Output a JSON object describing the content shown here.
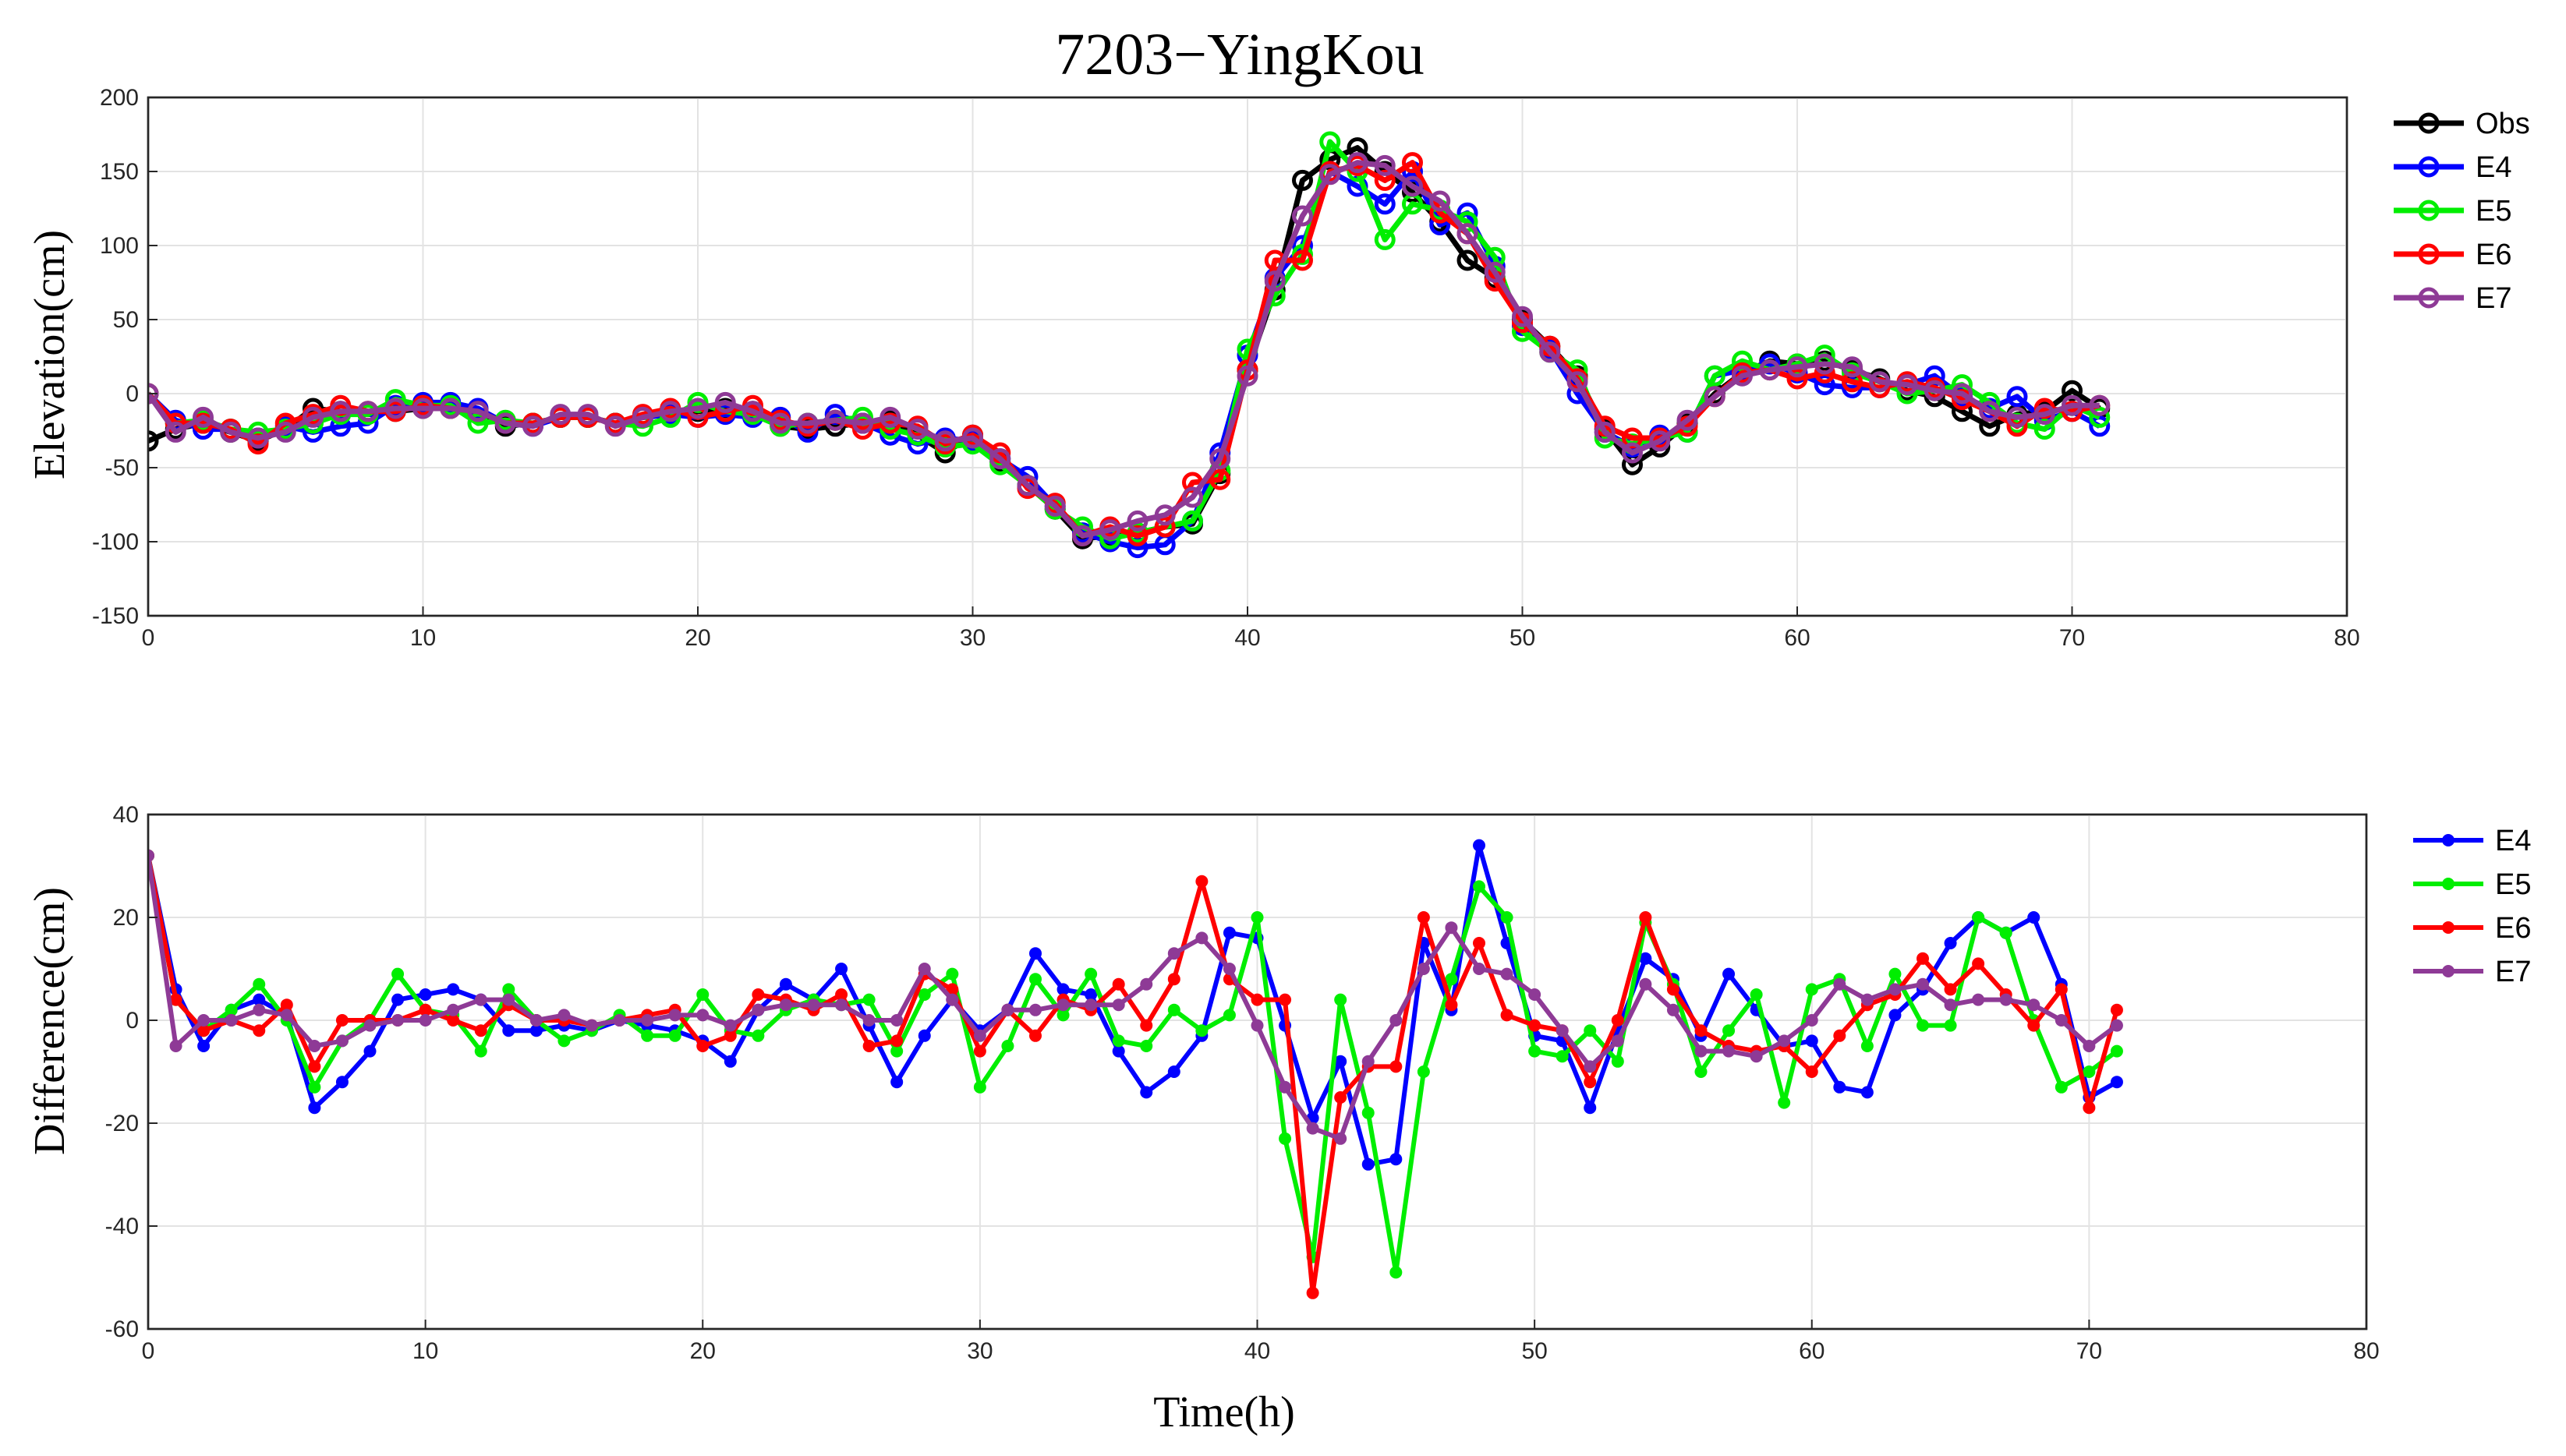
{
  "figure": {
    "title": "7203−YingKou",
    "xlabel": "Time(h)"
  },
  "colors": {
    "Obs": "#000000",
    "E4": "#0000ff",
    "E5": "#00ee00",
    "E6": "#ff0000",
    "E7": "#8e3a96"
  },
  "chart_data": [
    {
      "type": "line",
      "ylabel": "Elevation(cm)",
      "xlim": [
        0,
        80
      ],
      "ylim": [
        -150,
        200
      ],
      "xticks": [
        0,
        10,
        20,
        30,
        40,
        50,
        60,
        70,
        80
      ],
      "yticks": [
        -150,
        -100,
        -50,
        0,
        50,
        100,
        150,
        200
      ],
      "grid": true,
      "legend": "outside-right",
      "markers": "circle",
      "x": [
        0,
        1,
        2,
        3,
        4,
        5,
        6,
        7,
        8,
        9,
        10,
        11,
        12,
        13,
        14,
        15,
        16,
        17,
        18,
        19,
        20,
        21,
        22,
        23,
        24,
        25,
        26,
        27,
        28,
        29,
        30,
        31,
        32,
        33,
        34,
        35,
        36,
        37,
        38,
        39,
        40,
        41,
        42,
        43,
        44,
        45,
        46,
        47,
        48,
        49,
        50,
        51,
        52,
        53,
        54,
        55,
        56,
        57,
        58,
        59,
        60,
        61,
        62,
        63,
        64,
        65,
        66,
        67,
        68,
        69,
        70,
        71
      ],
      "series": [
        {
          "name": "Obs",
          "values": [
            -32,
            -24,
            -20,
            -26,
            -32,
            -24,
            -10,
            -12,
            -14,
            -12,
            -10,
            -10,
            -12,
            -22,
            -20,
            -16,
            -16,
            -20,
            -16,
            -14,
            -12,
            -10,
            -12,
            -22,
            -24,
            -22,
            -20,
            -18,
            -28,
            -40,
            -28,
            -46,
            -62,
            -78,
            -98,
            -96,
            -94,
            -90,
            -88,
            -54,
            16,
            70,
            144,
            158,
            166,
            150,
            136,
            116,
            90,
            78,
            50,
            32,
            12,
            -24,
            -48,
            -36,
            -20,
            0,
            14,
            22,
            20,
            22,
            16,
            10,
            2,
            -2,
            -12,
            -22,
            -14,
            -12,
            2,
            -10
          ]
        },
        {
          "name": "E4",
          "values": [
            0,
            -18,
            -24,
            -24,
            -30,
            -22,
            -26,
            -22,
            -20,
            -8,
            -6,
            -6,
            -10,
            -20,
            -22,
            -16,
            -16,
            -20,
            -16,
            -14,
            -16,
            -14,
            -16,
            -16,
            -26,
            -14,
            -20,
            -28,
            -34,
            -30,
            -32,
            -44,
            -56,
            -76,
            -94,
            -100,
            -104,
            -102,
            -86,
            -40,
            26,
            78,
            100,
            150,
            140,
            128,
            150,
            114,
            122,
            86,
            46,
            30,
            0,
            -26,
            -36,
            -28,
            -26,
            12,
            16,
            20,
            14,
            6,
            4,
            4,
            6,
            12,
            -2,
            -10,
            -2,
            -18,
            -12,
            -22
          ]
        },
        {
          "name": "E5",
          "values": [
            0,
            -20,
            -18,
            -24,
            -26,
            -24,
            -20,
            -14,
            -14,
            -4,
            -8,
            -8,
            -20,
            -18,
            -20,
            -16,
            -16,
            -20,
            -22,
            -16,
            -6,
            -12,
            -14,
            -22,
            -20,
            -18,
            -16,
            -24,
            -28,
            -36,
            -34,
            -48,
            -62,
            -78,
            -90,
            -98,
            -94,
            -90,
            -86,
            -52,
            30,
            66,
            94,
            170,
            150,
            104,
            128,
            124,
            116,
            92,
            42,
            28,
            16,
            -30,
            -34,
            -30,
            -26,
            12,
            22,
            16,
            20,
            26,
            14,
            8,
            0,
            2,
            6,
            -6,
            -20,
            -24,
            -8,
            -16
          ]
        },
        {
          "name": "E6",
          "values": [
            0,
            -20,
            -20,
            -24,
            -34,
            -20,
            -14,
            -8,
            -12,
            -12,
            -8,
            -10,
            -12,
            -20,
            -20,
            -16,
            -16,
            -20,
            -14,
            -10,
            -16,
            -12,
            -8,
            -18,
            -22,
            -18,
            -24,
            -20,
            -22,
            -34,
            -28,
            -40,
            -64,
            -74,
            -96,
            -90,
            -96,
            -90,
            -60,
            -58,
            16,
            90,
            90,
            150,
            154,
            144,
            156,
            122,
            108,
            76,
            48,
            32,
            10,
            -22,
            -30,
            -30,
            -22,
            -2,
            14,
            16,
            10,
            14,
            8,
            4,
            8,
            4,
            -4,
            -12,
            -22,
            -10,
            -12,
            -8
          ]
        },
        {
          "name": "E7",
          "values": [
            0,
            -26,
            -16,
            -26,
            -30,
            -26,
            -16,
            -12,
            -12,
            -10,
            -10,
            -10,
            -12,
            -20,
            -22,
            -14,
            -14,
            -22,
            -16,
            -12,
            -10,
            -6,
            -12,
            -20,
            -20,
            -18,
            -20,
            -16,
            -24,
            -32,
            -30,
            -44,
            -62,
            -76,
            -96,
            -92,
            -86,
            -82,
            -70,
            -44,
            12,
            76,
            120,
            148,
            156,
            154,
            140,
            130,
            108,
            82,
            52,
            28,
            8,
            -26,
            -40,
            -32,
            -18,
            -2,
            12,
            16,
            18,
            20,
            18,
            8,
            6,
            2,
            0,
            -12,
            -16,
            -14,
            -8,
            -8
          ]
        }
      ]
    },
    {
      "type": "line",
      "ylabel": "Difference(cm)",
      "xlim": [
        0,
        80
      ],
      "ylim": [
        -60,
        40
      ],
      "xticks": [
        0,
        10,
        20,
        30,
        40,
        50,
        60,
        70,
        80
      ],
      "yticks": [
        -60,
        -40,
        -20,
        0,
        20,
        40
      ],
      "grid": true,
      "legend": "outside-right",
      "markers": "dot",
      "x": [
        0,
        1,
        2,
        3,
        4,
        5,
        6,
        7,
        8,
        9,
        10,
        11,
        12,
        13,
        14,
        15,
        16,
        17,
        18,
        19,
        20,
        21,
        22,
        23,
        24,
        25,
        26,
        27,
        28,
        29,
        30,
        31,
        32,
        33,
        34,
        35,
        36,
        37,
        38,
        39,
        40,
        41,
        42,
        43,
        44,
        45,
        46,
        47,
        48,
        49,
        50,
        51,
        52,
        53,
        54,
        55,
        56,
        57,
        58,
        59,
        60,
        61,
        62,
        63,
        64,
        65,
        66,
        67,
        68,
        69,
        70,
        71
      ],
      "series": [
        {
          "name": "E4",
          "values": [
            32,
            6,
            -5,
            2,
            4,
            1,
            -17,
            -12,
            -6,
            4,
            5,
            6,
            4,
            -2,
            -2,
            -1,
            -2,
            0,
            -1,
            -2,
            -4,
            -8,
            2,
            7,
            4,
            10,
            -1,
            -12,
            -3,
            4,
            -2,
            2,
            13,
            6,
            5,
            -6,
            -14,
            -10,
            -3,
            17,
            16,
            -1,
            -19,
            -8,
            -28,
            -27,
            15,
            2,
            34,
            15,
            -3,
            -4,
            -17,
            -2,
            12,
            8,
            -3,
            9,
            2,
            -5,
            -4,
            -13,
            -14,
            1,
            6,
            15,
            20,
            17,
            20,
            7,
            -15,
            -12
          ]
        },
        {
          "name": "E5",
          "values": [
            32,
            4,
            -2,
            2,
            7,
            0,
            -13,
            -4,
            0,
            9,
            2,
            1,
            -6,
            6,
            0,
            -4,
            -2,
            1,
            -3,
            -3,
            5,
            -2,
            -3,
            2,
            4,
            3,
            4,
            -6,
            5,
            9,
            -13,
            -5,
            8,
            1,
            9,
            -4,
            -5,
            2,
            -2,
            1,
            20,
            -23,
            -46,
            4,
            -18,
            -49,
            -10,
            8,
            26,
            20,
            -6,
            -7,
            -2,
            -8,
            19,
            7,
            -10,
            -2,
            5,
            -16,
            6,
            8,
            -5,
            9,
            -1,
            -1,
            20,
            17,
            0,
            -13,
            -10,
            -6
          ]
        },
        {
          "name": "E6",
          "values": [
            32,
            4,
            -2,
            0,
            -2,
            3,
            -9,
            0,
            0,
            0,
            2,
            0,
            -2,
            3,
            0,
            0,
            -1,
            0,
            1,
            2,
            -5,
            -3,
            5,
            4,
            2,
            5,
            -5,
            -4,
            9,
            6,
            -6,
            2,
            -3,
            4,
            2,
            7,
            -1,
            8,
            27,
            8,
            4,
            4,
            -53,
            -15,
            -9,
            -9,
            20,
            3,
            15,
            1,
            -1,
            -2,
            -12,
            0,
            20,
            6,
            -2,
            -5,
            -6,
            -5,
            -10,
            -3,
            3,
            5,
            12,
            6,
            11,
            5,
            -1,
            6,
            -17,
            2
          ]
        },
        {
          "name": "E7",
          "values": [
            32,
            -5,
            0,
            0,
            2,
            1,
            -5,
            -4,
            -1,
            0,
            0,
            2,
            4,
            4,
            0,
            1,
            -1,
            0,
            0,
            1,
            1,
            -1,
            2,
            3,
            3,
            3,
            0,
            0,
            10,
            4,
            -3,
            2,
            2,
            3,
            3,
            3,
            7,
            13,
            16,
            10,
            -1,
            -13,
            -21,
            -23,
            -8,
            0,
            10,
            18,
            10,
            9,
            5,
            -2,
            -9,
            -4,
            7,
            2,
            -6,
            -6,
            -7,
            -4,
            0,
            7,
            4,
            6,
            7,
            3,
            4,
            4,
            3,
            0,
            -5,
            -1
          ]
        }
      ]
    }
  ]
}
